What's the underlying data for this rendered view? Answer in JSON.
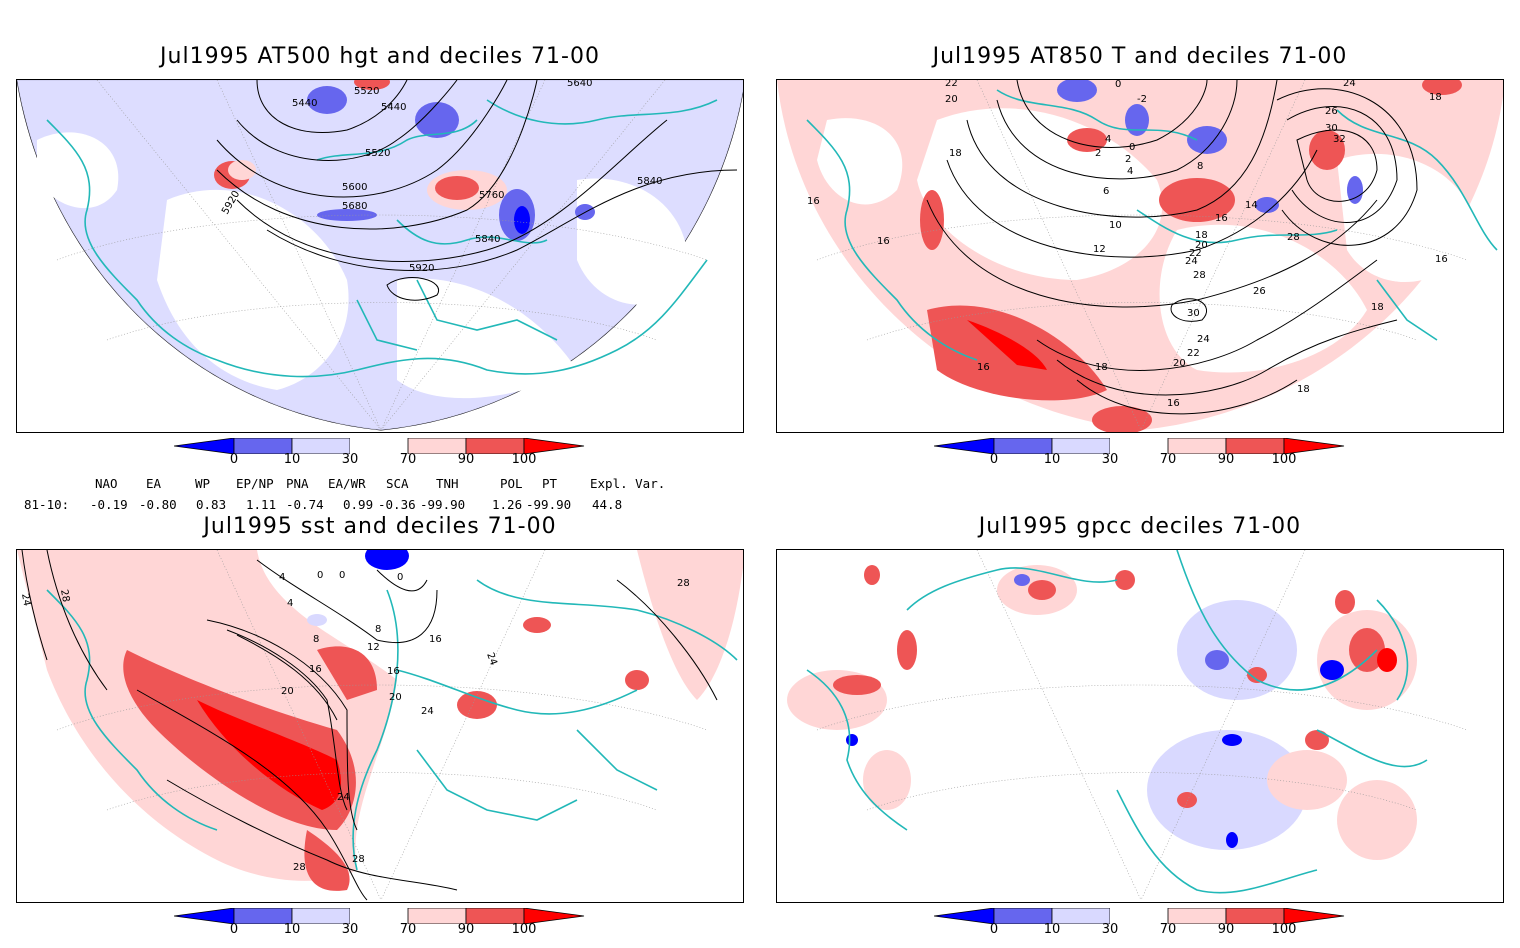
{
  "panels": [
    {
      "id": "p1",
      "title": "Jul1995 AT500 hgt and deciles 71-00",
      "contour_labels": [
        "5440",
        "5520",
        "5440",
        "5520",
        "5600",
        "5680",
        "5760",
        "5840",
        "5920",
        "5920",
        "5840",
        "5640",
        "5840"
      ]
    },
    {
      "id": "p2",
      "title": "Jul1995 AT850 T and deciles 71-00",
      "contour_labels": [
        "22",
        "20",
        "18",
        "16",
        "16",
        "16",
        "4",
        "2",
        "0",
        "-2",
        "0",
        "2",
        "4",
        "6",
        "8",
        "10",
        "12",
        "14",
        "16",
        "18",
        "20",
        "22",
        "24",
        "26",
        "28",
        "30",
        "32",
        "30",
        "28",
        "26",
        "24",
        "22",
        "20",
        "18",
        "18",
        "16",
        "16",
        "18",
        "24",
        "18"
      ]
    },
    {
      "id": "p3",
      "title": "Jul1995 sst and deciles 71-00",
      "contour_labels": [
        "24",
        "28",
        "4",
        "0",
        "0",
        "0",
        "4",
        "8",
        "8",
        "12",
        "16",
        "16",
        "16",
        "20",
        "20",
        "24",
        "24",
        "24",
        "28",
        "28",
        "28"
      ]
    },
    {
      "id": "p4",
      "title": "Jul1995 gpcc deciles 71-00",
      "contour_labels": []
    }
  ],
  "colorbar": {
    "labels": [
      "0",
      "10",
      "30",
      "70",
      "90",
      "100"
    ],
    "colors": [
      "#0000ff",
      "#6666ee",
      "#d9d9ff",
      "#ffffff",
      "#ffd6d6",
      "#ee5555",
      "#ff0000"
    ]
  },
  "indices": {
    "headers": [
      "NAO",
      "EA",
      "WP",
      "EP/NP",
      "PNA",
      "EA/WR",
      "SCA",
      "TNH",
      "POL",
      "PT",
      "Expl. Var."
    ],
    "row_label": "81-10:",
    "values": [
      "-0.19",
      "-0.80",
      "0.83",
      "1.11",
      "-0.74",
      "0.99",
      "-0.36",
      "-99.90",
      "1.26",
      "-99.90",
      "44.8"
    ]
  },
  "colors": {
    "coast": "#22b8b8",
    "contour": "#000000",
    "grid": "#888888"
  }
}
